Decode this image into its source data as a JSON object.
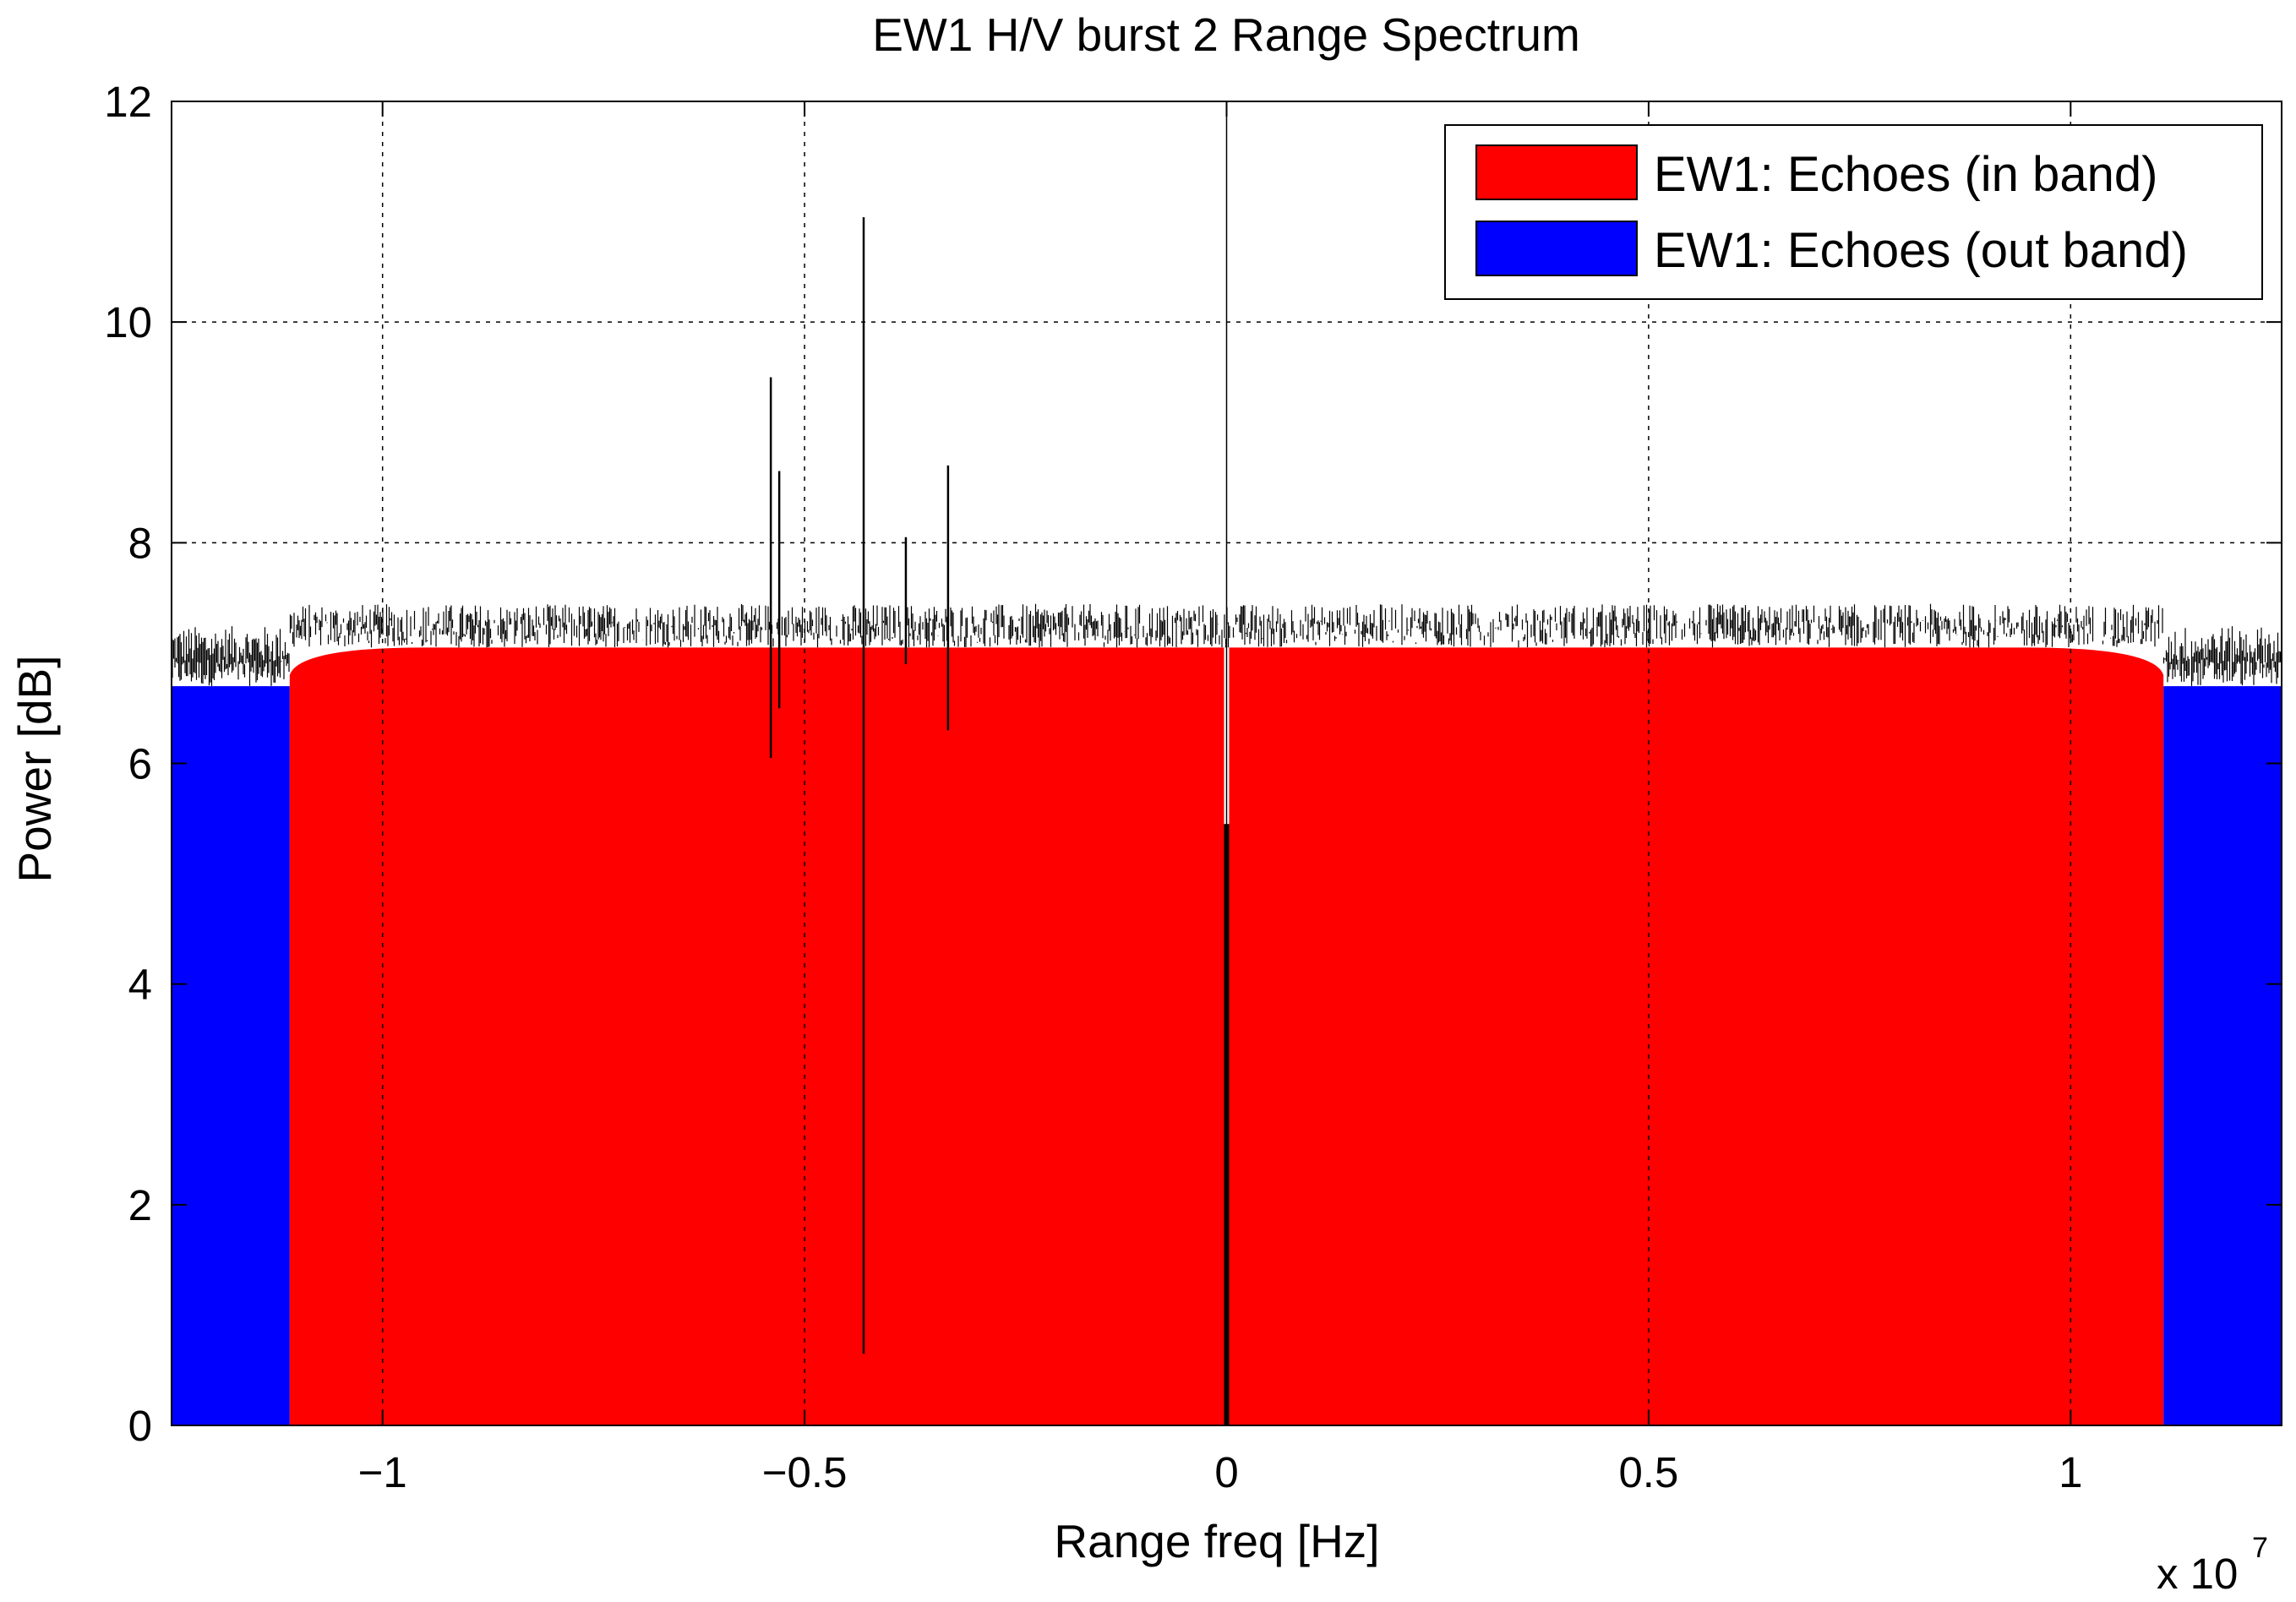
{
  "chart_data": {
    "type": "bar",
    "title": "EW1 H/V burst 2 Range Spectrum",
    "xlabel": "Range freq [Hz]",
    "ylabel": "Power [dB]",
    "x_multiplier": "x 10",
    "x_multiplier_exponent": "7",
    "xlim": [
      -12500000,
      12500000
    ],
    "ylim": [
      0,
      12
    ],
    "x_ticks": [
      -10000000,
      -5000000,
      0,
      5000000,
      10000000
    ],
    "x_tick_labels": [
      "−1",
      "−0.5",
      "0",
      "0.5",
      "1"
    ],
    "y_ticks": [
      0,
      2,
      4,
      6,
      8,
      10,
      12
    ],
    "y_tick_labels": [
      "0",
      "2",
      "4",
      "6",
      "8",
      "10",
      "12"
    ],
    "grid": true,
    "legend_position": "top-right",
    "series": [
      {
        "name": "EW1: Echoes (in band)",
        "color": "#ff0000",
        "x_range": [
          -11100000,
          11100000
        ],
        "edge_x_range": [
          -11000000,
          11000000
        ],
        "edge_level": 6.8,
        "center_level": 7.05,
        "noise_top_mean": 7.2,
        "noise_top_max": 7.5
      },
      {
        "name": "EW1: Echoes (out band)",
        "color": "#0000ff",
        "x_ranges": [
          [
            -12500000,
            -11100000
          ],
          [
            11100000,
            12500000
          ]
        ],
        "level": 6.7,
        "noise_top_mean": 7.0
      }
    ],
    "spikes": [
      {
        "x": -5400000,
        "top": 9.5,
        "bottom": 6.05
      },
      {
        "x": -5300000,
        "top": 8.65,
        "bottom": 6.5
      },
      {
        "x": -4300000,
        "top": 10.95,
        "bottom": 0.65
      },
      {
        "x": -3800000,
        "top": 8.05,
        "bottom": 6.9
      },
      {
        "x": -3300000,
        "top": 8.7,
        "bottom": 6.3
      }
    ],
    "dc_notch": {
      "x": 0,
      "level": 5.45
    }
  }
}
